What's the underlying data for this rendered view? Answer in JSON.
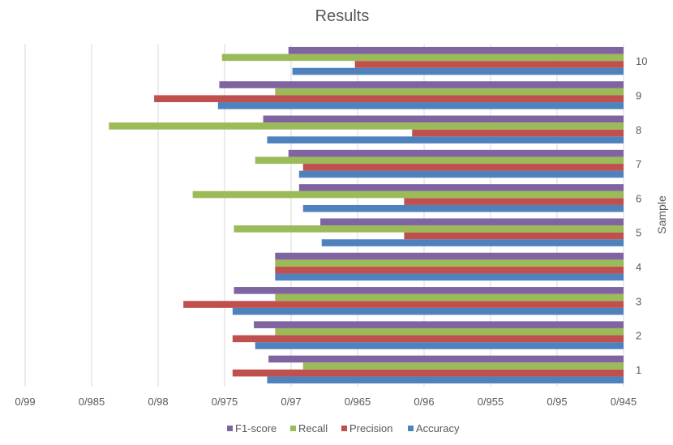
{
  "chart_data": {
    "type": "bar",
    "orientation": "horizontal",
    "title": "Results",
    "ylabel": "Sample",
    "xlabel": "",
    "x_axis_reversed": true,
    "xlim": [
      0.945,
      0.99
    ],
    "x_ticks": [
      0.99,
      0.985,
      0.98,
      0.975,
      0.97,
      0.965,
      0.96,
      0.955,
      0.95,
      0.945
    ],
    "x_tick_labels": [
      "0/99",
      "0/985",
      "0/98",
      "0/975",
      "0/97",
      "0/965",
      "0/96",
      "0/955",
      "0/95",
      "0/945"
    ],
    "categories": [
      "1",
      "2",
      "3",
      "4",
      "5",
      "6",
      "7",
      "8",
      "9",
      "10"
    ],
    "series": [
      {
        "name": "Accuracy",
        "color": "#4F81BD",
        "values": [
          0.9718,
          0.9727,
          0.9744,
          0.9712,
          0.9677,
          0.9691,
          0.9694,
          0.9718,
          0.9755,
          0.9699
        ]
      },
      {
        "name": "Precision",
        "color": "#C0504D",
        "values": [
          0.9744,
          0.9744,
          0.9781,
          0.9712,
          0.9615,
          0.9615,
          0.9691,
          0.9609,
          0.9803,
          0.9652
        ]
      },
      {
        "name": "Recall",
        "color": "#9BBB59",
        "values": [
          0.9691,
          0.9712,
          0.9712,
          0.9712,
          0.9743,
          0.9774,
          0.9727,
          0.9837,
          0.9712,
          0.9752
        ]
      },
      {
        "name": "F1-score",
        "color": "#8064A2",
        "values": [
          0.9717,
          0.9728,
          0.9743,
          0.9712,
          0.9678,
          0.9694,
          0.9702,
          0.9721,
          0.9754,
          0.9702
        ]
      }
    ],
    "legend_order": [
      "F1-score",
      "Recall",
      "Precision",
      "Accuracy"
    ],
    "legend_position": "bottom",
    "grid": "vertical major gridlines"
  }
}
